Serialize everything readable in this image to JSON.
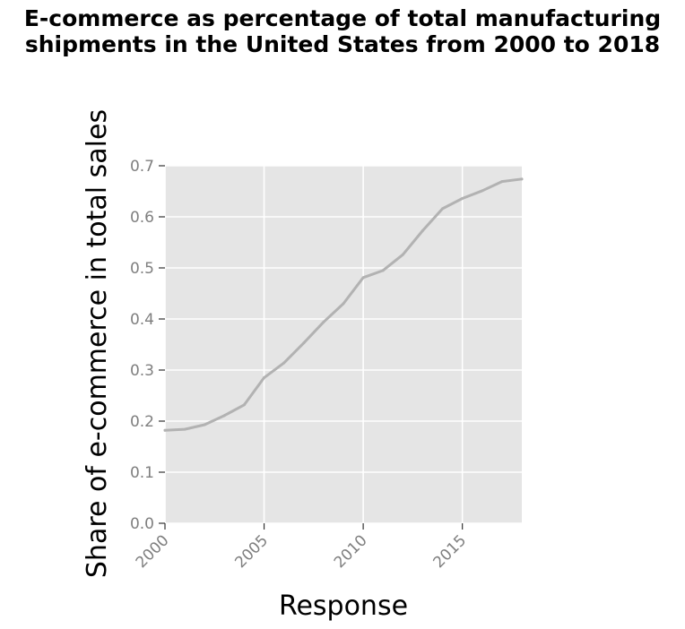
{
  "chart_data": {
    "type": "line",
    "title": "E-commerce as percentage of total manufacturing shipments in the United States from 2000 to 2018",
    "xlabel": "Response",
    "ylabel": "Share of e-commerce in total sales",
    "xlim": [
      2000,
      2018
    ],
    "ylim": [
      0,
      0.7
    ],
    "x_ticks": [
      "2000",
      "2005",
      "2010",
      "2015"
    ],
    "y_ticks": [
      "0.0",
      "0.1",
      "0.2",
      "0.3",
      "0.4",
      "0.5",
      "0.6",
      "0.7"
    ],
    "grid": true,
    "panel_color": "#e5e5e5",
    "grid_color": "#ffffff",
    "line_color": "#b2b2b2",
    "series": [
      {
        "x": [
          2000,
          2001,
          2002,
          2003,
          2004,
          2005,
          2006,
          2007,
          2008,
          2009,
          2010,
          2011,
          2012,
          2013,
          2014,
          2015,
          2016,
          2017,
          2018
        ],
        "values": [
          0.182,
          0.184,
          0.193,
          0.211,
          0.232,
          0.285,
          0.314,
          0.353,
          0.394,
          0.43,
          0.481,
          0.495,
          0.526,
          0.573,
          0.616,
          0.636,
          0.651,
          0.669,
          0.674
        ]
      }
    ]
  }
}
